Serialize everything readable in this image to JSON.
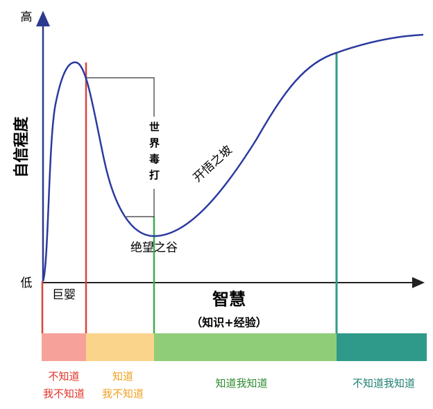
{
  "axes": {
    "y_high": "高",
    "y_low": "低",
    "y_title": "自信程度",
    "x_title": "智慧",
    "x_subtitle": "（知识+经验）"
  },
  "curve_labels": {
    "infant": "巨婴",
    "beating": "世界毒打",
    "slope": "开悟之坡",
    "valley": "绝望之谷"
  },
  "stages": [
    {
      "lines": [
        "不知道",
        "我不知道"
      ]
    },
    {
      "lines": [
        "知道",
        "我不知道"
      ]
    },
    {
      "lines": [
        "知道我知道"
      ]
    },
    {
      "lines": [
        "不知道我知道"
      ]
    }
  ]
}
